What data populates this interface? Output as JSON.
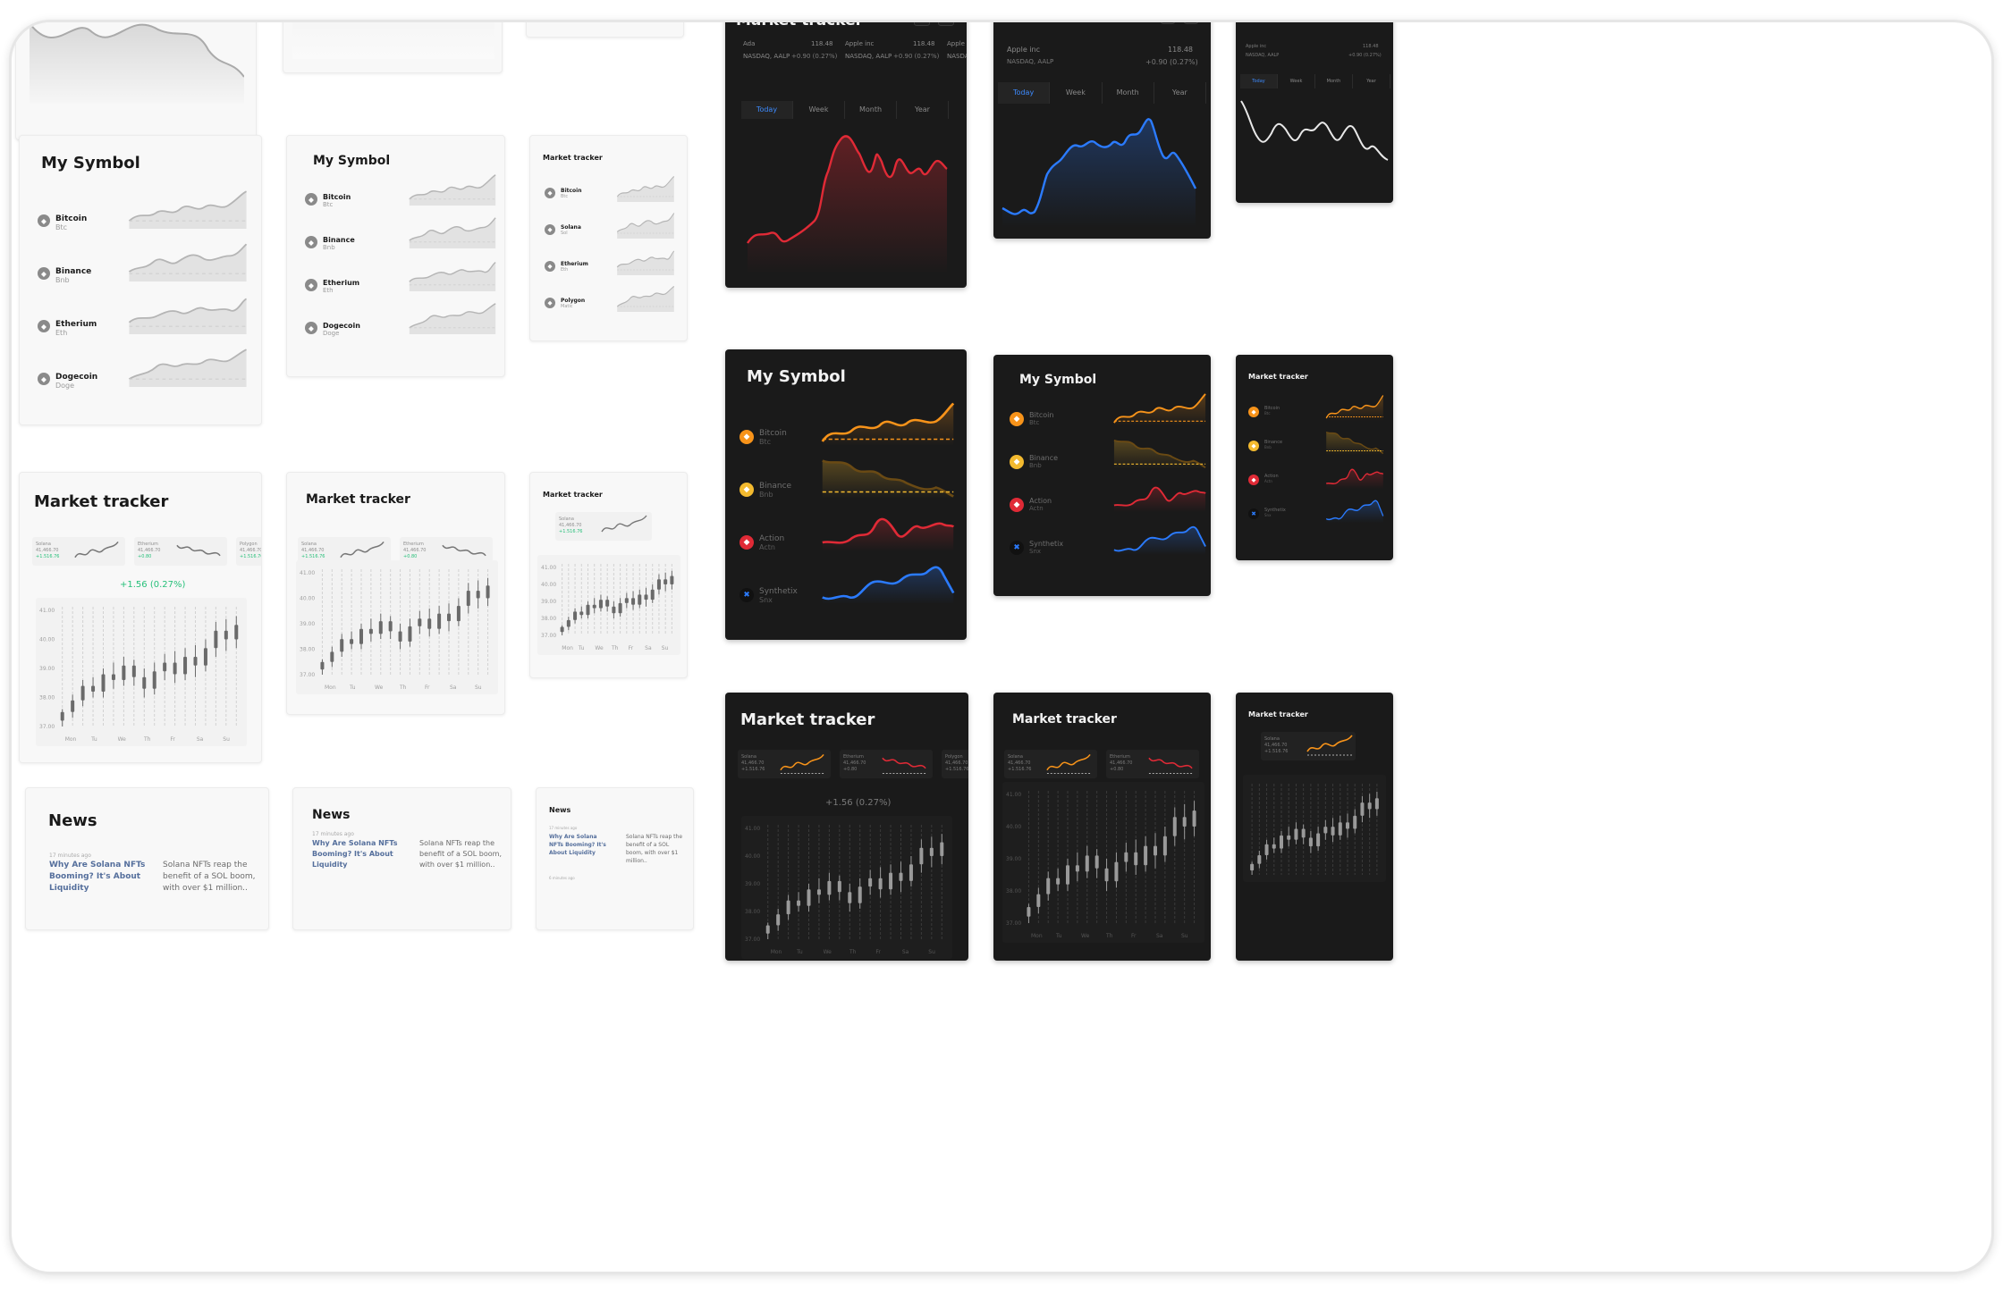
{
  "titles": {
    "my_symbol": "My Symbol",
    "market_tracker": "Market tracker",
    "news": "News"
  },
  "symbols_light": [
    {
      "name": "Bitcoin",
      "ticker": "Btc",
      "icon": "bitcoin-icon"
    },
    {
      "name": "Binance",
      "ticker": "Bnb",
      "icon": "binance-icon"
    },
    {
      "name": "Etherium",
      "ticker": "Eth",
      "icon": "etherium-icon"
    },
    {
      "name": "Dogecoin",
      "ticker": "Doge",
      "icon": "dogecoin-icon"
    }
  ],
  "symbols_light_small": [
    {
      "name": "Bitcoin",
      "ticker": "Btc",
      "icon": "bitcoin-icon"
    },
    {
      "name": "Solana",
      "ticker": "Sol",
      "icon": "solana-icon"
    },
    {
      "name": "Etherium",
      "ticker": "Eth",
      "icon": "etherium-icon"
    },
    {
      "name": "Polygon",
      "ticker": "Matic",
      "icon": "polygon-icon"
    }
  ],
  "symbols_dark": [
    {
      "name": "Bitcoin",
      "ticker": "Btc",
      "icon": "bitcoin-icon",
      "color": "#f7931a"
    },
    {
      "name": "Binance",
      "ticker": "Bnb",
      "icon": "binance-icon",
      "color": "#f3ba2f"
    },
    {
      "name": "Action",
      "ticker": "Actn",
      "icon": "action-icon",
      "color": "#e02a36"
    },
    {
      "name": "Synthetix",
      "ticker": "Snx",
      "icon": "synthetix-icon",
      "color": "#2b7bff"
    }
  ],
  "tracker_quotes": [
    {
      "name": "Solana",
      "price": "41,466.70",
      "change": "+1.516.76"
    },
    {
      "name": "Etherium",
      "price": "41,466.70",
      "change": "+0.80"
    },
    {
      "name": "Polygon",
      "price": "41,466.70",
      "change": "+1.516.76"
    }
  ],
  "big_change": "+1.56 (0.27%)",
  "y_ticks": [
    "41.00",
    "40.00",
    "39.00",
    "38.00",
    "37.00"
  ],
  "days": [
    "Mon",
    "Tu",
    "We",
    "Th",
    "Fr",
    "Sa",
    "Su"
  ],
  "news": {
    "time": "17 minutes ago",
    "headline": "Why Are Solana NFTs Booming? It's About Liquidity",
    "summary": "Solana NFTs reap the benefit of a SOL boom, with over $1 million..",
    "time2": "6 minutes ago"
  },
  "dark_tracker": {
    "quotes": [
      {
        "name": "Ada",
        "market": "NASDAQ, AALP",
        "price": "118.48",
        "change": "+0.90 (0.27%)"
      },
      {
        "name": "Apple inc",
        "market": "NASDAQ, AALP",
        "price": "118.48",
        "change": "+0.90 (0.27%)"
      },
      {
        "name": "Apple",
        "market": "NASDA",
        "price": "",
        "change": ""
      }
    ],
    "quote_b": {
      "name": "Apple inc",
      "market": "NASDAQ, AALP",
      "price": "118.48",
      "change": "+0.90 (0.27%)"
    },
    "tabs": [
      "Today",
      "Week",
      "Month",
      "Year"
    ]
  },
  "colors": {
    "green": "#27c07a",
    "orange": "#f7931a",
    "red": "#e02a36",
    "blue": "#2b7bff",
    "dark_bg": "#1a1a1a",
    "light_bg": "#f8f8f8"
  },
  "chart_data": [
    {
      "type": "candlestick",
      "title": "Market tracker",
      "categories": [
        "Mon",
        "Tu",
        "We",
        "Th",
        "Fr",
        "Sa",
        "Su"
      ],
      "ylim": [
        37,
        41
      ],
      "yticks": [
        "41.00",
        "40.00",
        "39.00",
        "38.00",
        "37.00"
      ]
    }
  ]
}
